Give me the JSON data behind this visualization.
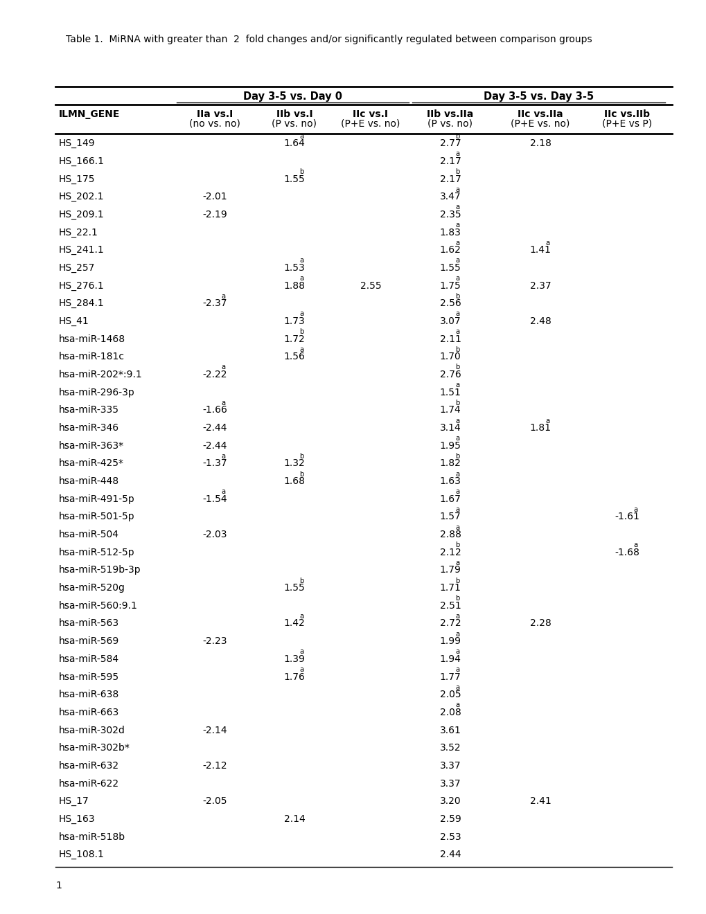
{
  "title": "Table 1.  MiRNA with greater than  2  fold changes and/or significantly regulated between comparison groups",
  "col_headers_line1": [
    "ILMN_GENE",
    "IIa vs.I",
    "IIb vs.I",
    "IIc vs.I",
    "IIb vs.IIa",
    "IIc vs.IIa",
    "IIc vs.IIb"
  ],
  "col_headers_line2": [
    "",
    "(no vs. no)",
    "(P vs. no)",
    "(P+E vs. no)",
    "(P vs. no)",
    "(P+E vs. no)",
    "(P+E vs P)"
  ],
  "rows": [
    [
      "HS_149",
      "",
      "1.64",
      "a",
      "",
      "",
      "2.77",
      "b",
      "2.18",
      "",
      "",
      ""
    ],
    [
      "HS_166.1",
      "",
      "",
      "",
      "",
      "",
      "2.17",
      "a",
      "",
      "",
      "",
      ""
    ],
    [
      "HS_175",
      "",
      "1.55",
      "b",
      "",
      "",
      "2.17",
      "b",
      "",
      "",
      "",
      ""
    ],
    [
      "HS_202.1",
      "-2.01",
      "",
      "",
      "",
      "",
      "3.47",
      "a",
      "",
      "",
      "",
      ""
    ],
    [
      "HS_209.1",
      "-2.19",
      "",
      "",
      "",
      "",
      "2.35",
      "a",
      "",
      "",
      "",
      ""
    ],
    [
      "HS_22.1",
      "",
      "",
      "",
      "",
      "",
      "1.83",
      "a",
      "",
      "",
      "",
      ""
    ],
    [
      "HS_241.1",
      "",
      "",
      "",
      "",
      "",
      "1.62",
      "a",
      "1.41",
      "a",
      "",
      ""
    ],
    [
      "HS_257",
      "",
      "1.53",
      "a",
      "",
      "",
      "1.55",
      "a",
      "",
      "",
      "",
      ""
    ],
    [
      "HS_276.1",
      "",
      "1.88",
      "a",
      "2.55",
      "",
      "1.75",
      "a",
      "2.37",
      "",
      "",
      ""
    ],
    [
      "HS_284.1",
      "-2.37",
      "a",
      "",
      "",
      "",
      "2.56",
      "b",
      "",
      "",
      "",
      ""
    ],
    [
      "HS_41",
      "",
      "1.73",
      "a",
      "",
      "",
      "3.07",
      "a",
      "2.48",
      "",
      "",
      ""
    ],
    [
      "hsa-miR-1468",
      "",
      "1.72",
      "b",
      "",
      "",
      "2.11",
      "a",
      "",
      "",
      "",
      ""
    ],
    [
      "hsa-miR-181c",
      "",
      "1.56",
      "a",
      "",
      "",
      "1.70",
      "b",
      "",
      "",
      "",
      ""
    ],
    [
      "hsa-miR-202*:9.1",
      "-2.22",
      "a",
      "",
      "",
      "",
      "2.76",
      "b",
      "",
      "",
      "",
      ""
    ],
    [
      "hsa-miR-296-3p",
      "",
      "",
      "",
      "",
      "",
      "1.51",
      "a",
      "",
      "",
      "",
      ""
    ],
    [
      "hsa-miR-335",
      "-1.66",
      "a",
      "",
      "",
      "",
      "1.74",
      "b",
      "",
      "",
      "",
      ""
    ],
    [
      "hsa-miR-346",
      "-2.44",
      "",
      "",
      "",
      "",
      "3.14",
      "a",
      "1.81",
      "a",
      "",
      ""
    ],
    [
      "hsa-miR-363*",
      "-2.44",
      "",
      "",
      "",
      "",
      "1.95",
      "a",
      "",
      "",
      "",
      ""
    ],
    [
      "hsa-miR-425*",
      "-1.37",
      "a",
      "1.32",
      "b",
      "",
      "1.82",
      "b",
      "",
      "",
      "",
      ""
    ],
    [
      "hsa-miR-448",
      "",
      "1.68",
      "b",
      "",
      "",
      "1.63",
      "a",
      "",
      "",
      "",
      ""
    ],
    [
      "hsa-miR-491-5p",
      "-1.54",
      "a",
      "",
      "",
      "",
      "1.67",
      "a",
      "",
      "",
      "",
      ""
    ],
    [
      "hsa-miR-501-5p",
      "",
      "",
      "",
      "",
      "",
      "1.57",
      "a",
      "",
      "",
      "-1.61",
      "a"
    ],
    [
      "hsa-miR-504",
      "-2.03",
      "",
      "",
      "",
      "",
      "2.88",
      "a",
      "",
      "",
      "",
      ""
    ],
    [
      "hsa-miR-512-5p",
      "",
      "",
      "",
      "",
      "",
      "2.12",
      "b",
      "",
      "",
      "-1.68",
      "a"
    ],
    [
      "hsa-miR-519b-3p",
      "",
      "",
      "",
      "",
      "",
      "1.79",
      "a",
      "",
      "",
      "",
      ""
    ],
    [
      "hsa-miR-520g",
      "",
      "1.55",
      "b",
      "",
      "",
      "1.71",
      "b",
      "",
      "",
      "",
      ""
    ],
    [
      "hsa-miR-560:9.1",
      "",
      "",
      "",
      "",
      "",
      "2.51",
      "b",
      "",
      "",
      "",
      ""
    ],
    [
      "hsa-miR-563",
      "",
      "1.42",
      "a",
      "",
      "",
      "2.72",
      "a",
      "2.28",
      "",
      "",
      ""
    ],
    [
      "hsa-miR-569",
      "-2.23",
      "",
      "",
      "",
      "",
      "1.99",
      "a",
      "",
      "",
      "",
      ""
    ],
    [
      "hsa-miR-584",
      "",
      "1.39",
      "a",
      "",
      "",
      "1.94",
      "a",
      "",
      "",
      "",
      ""
    ],
    [
      "hsa-miR-595",
      "",
      "1.76",
      "a",
      "",
      "",
      "1.77",
      "a",
      "",
      "",
      "",
      ""
    ],
    [
      "hsa-miR-638",
      "",
      "",
      "",
      "",
      "",
      "2.05",
      "a",
      "",
      "",
      "",
      ""
    ],
    [
      "hsa-miR-663",
      "",
      "",
      "",
      "",
      "",
      "2.08",
      "a",
      "",
      "",
      "",
      ""
    ],
    [
      "hsa-miR-302d",
      "-2.14",
      "",
      "",
      "",
      "",
      "3.61",
      "",
      "",
      "",
      "",
      ""
    ],
    [
      "hsa-miR-302b*",
      "",
      "",
      "",
      "",
      "",
      "3.52",
      "",
      "",
      "",
      "",
      ""
    ],
    [
      "hsa-miR-632",
      "-2.12",
      "",
      "",
      "",
      "",
      "3.37",
      "",
      "",
      "",
      "",
      ""
    ],
    [
      "hsa-miR-622",
      "",
      "",
      "",
      "",
      "",
      "3.37",
      "",
      "",
      "",
      "",
      ""
    ],
    [
      "HS_17",
      "-2.05",
      "",
      "",
      "",
      "",
      "3.20",
      "",
      "2.41",
      "",
      "",
      ""
    ],
    [
      "HS_163",
      "",
      "2.14",
      "",
      "",
      "",
      "2.59",
      "",
      "",
      "",
      "",
      ""
    ],
    [
      "hsa-miR-518b",
      "",
      "",
      "",
      "",
      "",
      "2.53",
      "",
      "",
      "",
      "",
      ""
    ],
    [
      "HS_108.1",
      "",
      "",
      "",
      "",
      "",
      "2.44",
      "",
      "",
      "",
      "",
      ""
    ]
  ],
  "footnote": "1"
}
